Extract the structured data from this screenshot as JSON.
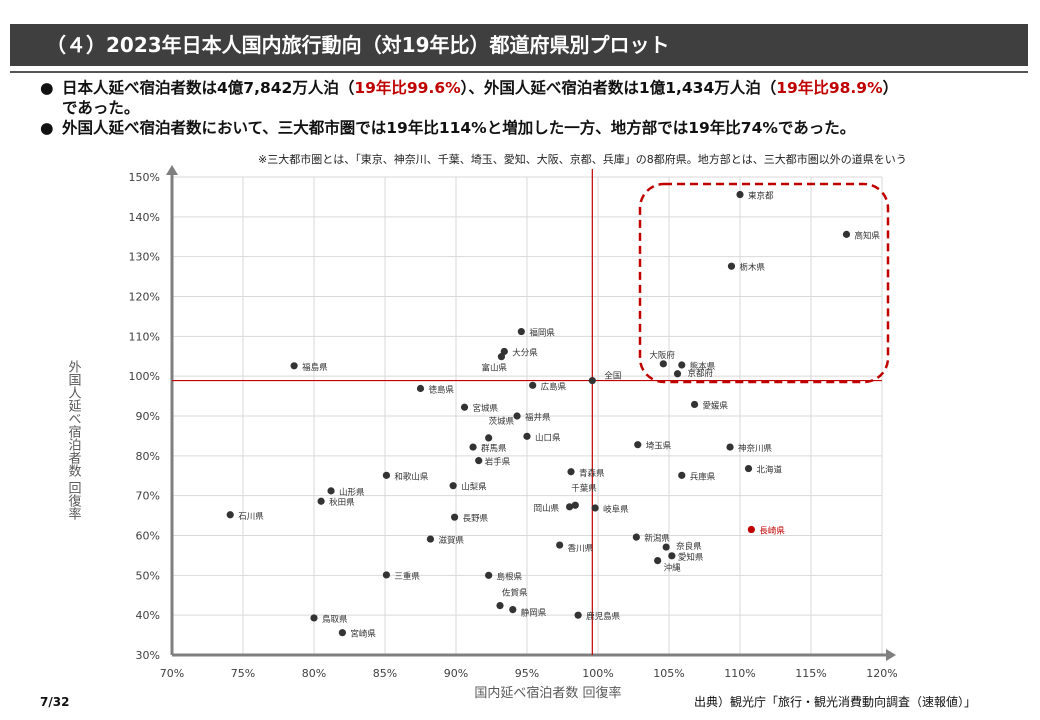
{
  "header": {
    "title": "（４）2023年日本人国内旅行動向（対19年比）都道府県別プロット"
  },
  "bullets": {
    "b1_part1": "日本人延べ宿泊者数は4億7,842万人泊（",
    "b1_red1": "19年比99.6%",
    "b1_part2": "）、外国人延べ宿泊者数は1億1,434万人泊（",
    "b1_red2": "19年比98.9%",
    "b1_part3": "）",
    "b1_cont": "であった。",
    "b2": "外国人延べ宿泊者数において、三大都市圏では19年比114%と増加した一方、地方部では19年比74%であった。"
  },
  "note": "※三大都市圏とは、「東京、神奈川、千葉、埼玉、愛知、大阪、京都、兵庫」の8都府県。地方部とは、三大都市圏以外の道県をいう",
  "footer": {
    "page": "7/32",
    "source": "出典）観光庁「旅行・観光消費動向調査（速報値）」"
  },
  "colors": {
    "point": "#333333",
    "highlight": "#c00000",
    "refline": "#c00000",
    "grid": "#d9d9d9",
    "axis": "#7f7f7f"
  },
  "chart_data": {
    "type": "scatter",
    "xlabel": "国内延べ宿泊者数 回復率",
    "ylabel": "外国人延べ宿泊者数 回復率",
    "xlim": [
      70,
      120
    ],
    "ylim": [
      30,
      150
    ],
    "x_ticks": [
      70,
      75,
      80,
      85,
      90,
      95,
      100,
      105,
      110,
      115,
      120
    ],
    "y_ticks": [
      30,
      40,
      50,
      60,
      70,
      80,
      90,
      100,
      110,
      120,
      130,
      140,
      150
    ],
    "x_tick_labels": [
      "70%",
      "75%",
      "80%",
      "85%",
      "90%",
      "95%",
      "100%",
      "105%",
      "110%",
      "115%",
      "120%"
    ],
    "y_tick_labels": [
      "30%",
      "40%",
      "50%",
      "60%",
      "70%",
      "80%",
      "90%",
      "100%",
      "110%",
      "120%",
      "130%",
      "140%",
      "150%"
    ],
    "grid": true,
    "reference_lines": {
      "x": 99.6,
      "y": 98.9
    },
    "points": [
      {
        "name": "東京都",
        "x": 110.0,
        "y": 145.6
      },
      {
        "name": "高知県",
        "x": 117.5,
        "y": 135.6
      },
      {
        "name": "栃木県",
        "x": 109.4,
        "y": 127.6
      },
      {
        "name": "福岡県",
        "x": 94.6,
        "y": 111.2
      },
      {
        "name": "大分県",
        "x": 93.4,
        "y": 106.2
      },
      {
        "name": "富山県",
        "x": 93.2,
        "y": 104.9
      },
      {
        "name": "福島県",
        "x": 78.6,
        "y": 102.6
      },
      {
        "name": "大阪府",
        "x": 104.6,
        "y": 103.1
      },
      {
        "name": "熊本県",
        "x": 105.9,
        "y": 102.8
      },
      {
        "name": "京都府",
        "x": 105.6,
        "y": 100.6
      },
      {
        "name": "全国",
        "x": 99.6,
        "y": 98.9
      },
      {
        "name": "広島県",
        "x": 95.4,
        "y": 97.7
      },
      {
        "name": "徳島県",
        "x": 87.5,
        "y": 96.9
      },
      {
        "name": "宮城県",
        "x": 90.6,
        "y": 92.2
      },
      {
        "name": "福井県",
        "x": 94.3,
        "y": 90.0
      },
      {
        "name": "愛媛県",
        "x": 106.8,
        "y": 92.9
      },
      {
        "name": "茨城県",
        "x": 92.3,
        "y": 84.5
      },
      {
        "name": "山口県",
        "x": 95.0,
        "y": 84.9
      },
      {
        "name": "群馬県",
        "x": 91.2,
        "y": 82.2
      },
      {
        "name": "埼玉県",
        "x": 102.8,
        "y": 82.8
      },
      {
        "name": "神奈川県",
        "x": 109.3,
        "y": 82.2
      },
      {
        "name": "岩手県",
        "x": 91.6,
        "y": 78.8
      },
      {
        "name": "北海道",
        "x": 110.6,
        "y": 76.8
      },
      {
        "name": "青森県",
        "x": 98.1,
        "y": 76.0
      },
      {
        "name": "和歌山県",
        "x": 85.1,
        "y": 75.1
      },
      {
        "name": "兵庫県",
        "x": 105.9,
        "y": 75.1
      },
      {
        "name": "山梨県",
        "x": 89.8,
        "y": 72.5
      },
      {
        "name": "山形県",
        "x": 81.2,
        "y": 71.2
      },
      {
        "name": "秋田県",
        "x": 80.5,
        "y": 68.6
      },
      {
        "name": "千葉県",
        "x": 98.4,
        "y": 67.6
      },
      {
        "name": "岡山県",
        "x": 98.0,
        "y": 67.2
      },
      {
        "name": "岐阜県",
        "x": 99.8,
        "y": 66.9
      },
      {
        "name": "石川県",
        "x": 74.1,
        "y": 65.2
      },
      {
        "name": "長野県",
        "x": 89.9,
        "y": 64.6
      },
      {
        "name": "長崎県",
        "x": 110.8,
        "y": 61.5,
        "highlight": true
      },
      {
        "name": "滋賀県",
        "x": 88.2,
        "y": 59.1
      },
      {
        "name": "新潟県",
        "x": 102.7,
        "y": 59.6
      },
      {
        "name": "香川県",
        "x": 97.3,
        "y": 57.6
      },
      {
        "name": "奈良県",
        "x": 104.8,
        "y": 57.1
      },
      {
        "name": "愛知県",
        "x": 105.2,
        "y": 54.9
      },
      {
        "name": "沖縄",
        "x": 104.2,
        "y": 53.7
      },
      {
        "name": "三重県",
        "x": 85.1,
        "y": 50.1
      },
      {
        "name": "島根県",
        "x": 92.3,
        "y": 50.0
      },
      {
        "name": "佐賀県",
        "x": 93.1,
        "y": 42.4
      },
      {
        "name": "静岡県",
        "x": 94.0,
        "y": 41.4
      },
      {
        "name": "鹿児島県",
        "x": 98.6,
        "y": 40.0
      },
      {
        "name": "鳥取県",
        "x": 80.0,
        "y": 39.3
      },
      {
        "name": "宮崎県",
        "x": 82.0,
        "y": 35.6
      }
    ]
  }
}
